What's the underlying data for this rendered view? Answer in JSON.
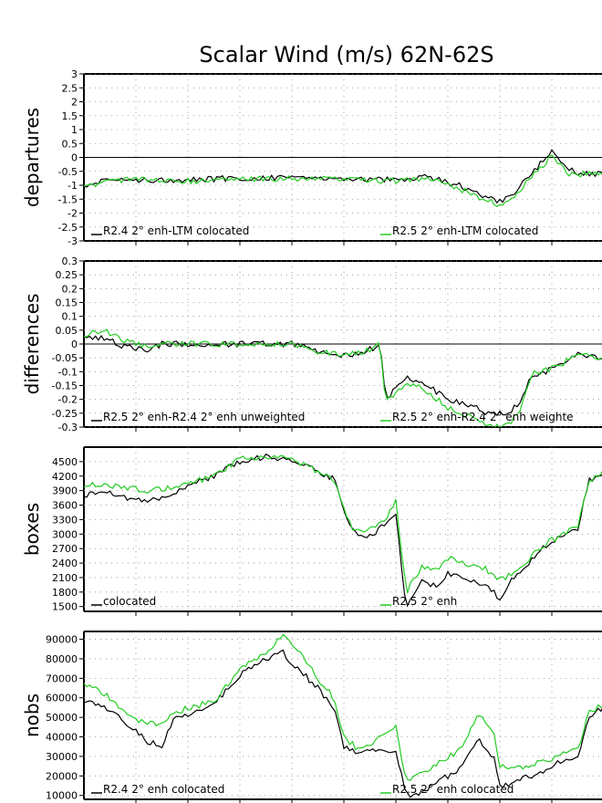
{
  "chart_data": {
    "title": "Scalar Wind (m/s) 62N-62S",
    "colors": {
      "black": "#000000",
      "green": "#22cc22",
      "grid": "#8c8c8c",
      "zero_line": "#000000"
    },
    "panels": [
      {
        "type": "line",
        "ylabel": "departures",
        "ylim": [
          -3,
          3
        ],
        "yticks": [
          "3",
          "2.5",
          "2",
          "1.5",
          "1",
          "0.5",
          "0",
          "-0.5",
          "-1",
          "-1.5",
          "-2",
          "-2.5",
          "-3"
        ],
        "zero_line": true,
        "grid": true,
        "legend": {
          "placement": "bottom",
          "black_label": "R2.4 2° enh-LTM colocated",
          "green_label": "R2.5 2° enh-LTM colocated"
        },
        "series": [
          {
            "name": "R2.4 2° enh-LTM colocated",
            "color": "black",
            "keypoints": [
              [
                0,
                -1.0
              ],
              [
                0.05,
                -0.8
              ],
              [
                0.1,
                -0.8
              ],
              [
                0.2,
                -0.8
              ],
              [
                0.3,
                -0.75
              ],
              [
                0.4,
                -0.7
              ],
              [
                0.5,
                -0.75
              ],
              [
                0.6,
                -0.8
              ],
              [
                0.66,
                -0.7
              ],
              [
                0.72,
                -1.0
              ],
              [
                0.77,
                -1.4
              ],
              [
                0.8,
                -1.6
              ],
              [
                0.83,
                -1.2
              ],
              [
                0.86,
                -0.6
              ],
              [
                0.9,
                0.25
              ],
              [
                0.93,
                -0.4
              ],
              [
                0.96,
                -0.6
              ],
              [
                1.0,
                -0.6
              ]
            ]
          },
          {
            "name": "R2.5 2° enh-LTM colocated",
            "color": "green",
            "keypoints": [
              [
                0,
                -1.1
              ],
              [
                0.05,
                -0.8
              ],
              [
                0.1,
                -0.8
              ],
              [
                0.2,
                -0.85
              ],
              [
                0.3,
                -0.8
              ],
              [
                0.4,
                -0.75
              ],
              [
                0.5,
                -0.8
              ],
              [
                0.6,
                -0.85
              ],
              [
                0.66,
                -0.75
              ],
              [
                0.72,
                -1.1
              ],
              [
                0.77,
                -1.5
              ],
              [
                0.8,
                -1.7
              ],
              [
                0.83,
                -1.4
              ],
              [
                0.86,
                -0.7
              ],
              [
                0.9,
                0.05
              ],
              [
                0.93,
                -0.6
              ],
              [
                0.96,
                -0.6
              ],
              [
                1.0,
                -0.6
              ]
            ]
          }
        ]
      },
      {
        "type": "line",
        "ylabel": "differences",
        "ylim": [
          -0.3,
          0.3
        ],
        "yticks": [
          "0.3",
          "0.25",
          "0.2",
          "0.15",
          "0.1",
          "0.05",
          "0",
          "-0.05",
          "-0.1",
          "-0.15",
          "-0.2",
          "-0.25",
          "-0.3"
        ],
        "zero_line": true,
        "grid": true,
        "legend": {
          "placement": "bottom",
          "black_label": "R2.5 2° enh-R2.4 2° enh unweighted",
          "green_label": "R2.5 2° enh-R2.4 2° enh weighte"
        },
        "series": [
          {
            "name": "R2.5 2° enh-R2.4 2° enh unweighted",
            "color": "black",
            "keypoints": [
              [
                0,
                0.02
              ],
              [
                0.04,
                0.02
              ],
              [
                0.08,
                -0.01
              ],
              [
                0.12,
                -0.02
              ],
              [
                0.15,
                0.0
              ],
              [
                0.2,
                0.0
              ],
              [
                0.3,
                0.0
              ],
              [
                0.4,
                0.0
              ],
              [
                0.46,
                -0.03
              ],
              [
                0.5,
                -0.04
              ],
              [
                0.54,
                -0.03
              ],
              [
                0.57,
                0.0
              ],
              [
                0.58,
                -0.2
              ],
              [
                0.62,
                -0.12
              ],
              [
                0.66,
                -0.15
              ],
              [
                0.7,
                -0.2
              ],
              [
                0.74,
                -0.22
              ],
              [
                0.78,
                -0.25
              ],
              [
                0.82,
                -0.25
              ],
              [
                0.84,
                -0.2
              ],
              [
                0.86,
                -0.12
              ],
              [
                0.9,
                -0.09
              ],
              [
                0.95,
                -0.04
              ],
              [
                1.0,
                -0.05
              ]
            ]
          },
          {
            "name": "R2.5 2° enh-R2.4 2° enh weighte",
            "color": "green",
            "keypoints": [
              [
                0,
                0.03
              ],
              [
                0.04,
                0.05
              ],
              [
                0.08,
                0.01
              ],
              [
                0.12,
                -0.01
              ],
              [
                0.15,
                0.0
              ],
              [
                0.2,
                0.0
              ],
              [
                0.3,
                0.0
              ],
              [
                0.4,
                0.0
              ],
              [
                0.46,
                -0.03
              ],
              [
                0.5,
                -0.04
              ],
              [
                0.54,
                -0.03
              ],
              [
                0.57,
                0.0
              ],
              [
                0.58,
                -0.21
              ],
              [
                0.62,
                -0.14
              ],
              [
                0.66,
                -0.17
              ],
              [
                0.7,
                -0.23
              ],
              [
                0.74,
                -0.26
              ],
              [
                0.78,
                -0.3
              ],
              [
                0.82,
                -0.29
              ],
              [
                0.84,
                -0.23
              ],
              [
                0.86,
                -0.11
              ],
              [
                0.9,
                -0.09
              ],
              [
                0.95,
                -0.04
              ],
              [
                1.0,
                -0.05
              ]
            ]
          }
        ]
      },
      {
        "type": "line",
        "ylabel": "boxes",
        "ylim": [
          1400,
          4800
        ],
        "yticks": [
          "4500",
          "4200",
          "3900",
          "3600",
          "3300",
          "3000",
          "2700",
          "2400",
          "2100",
          "1800",
          "1500"
        ],
        "zero_line": false,
        "grid": true,
        "legend": {
          "placement": "bottom",
          "black_label": "colocated",
          "green_label": "R2.5 2° enh"
        },
        "series": [
          {
            "name": "colocated",
            "color": "black",
            "keypoints": [
              [
                0,
                3800
              ],
              [
                0.04,
                3900
              ],
              [
                0.08,
                3750
              ],
              [
                0.12,
                3650
              ],
              [
                0.16,
                3800
              ],
              [
                0.2,
                4000
              ],
              [
                0.25,
                4200
              ],
              [
                0.3,
                4500
              ],
              [
                0.35,
                4600
              ],
              [
                0.4,
                4550
              ],
              [
                0.45,
                4300
              ],
              [
                0.48,
                4150
              ],
              [
                0.5,
                3500
              ],
              [
                0.52,
                3000
              ],
              [
                0.55,
                2950
              ],
              [
                0.58,
                3200
              ],
              [
                0.6,
                3400
              ],
              [
                0.62,
                1450
              ],
              [
                0.65,
                2000
              ],
              [
                0.68,
                1900
              ],
              [
                0.7,
                2200
              ],
              [
                0.74,
                2000
              ],
              [
                0.77,
                2000
              ],
              [
                0.8,
                1650
              ],
              [
                0.82,
                2000
              ],
              [
                0.85,
                2300
              ],
              [
                0.88,
                2700
              ],
              [
                0.92,
                3000
              ],
              [
                0.95,
                3100
              ],
              [
                0.97,
                4100
              ],
              [
                1.0,
                4300
              ]
            ]
          },
          {
            "name": "R2.5 2° enh",
            "color": "green",
            "keypoints": [
              [
                0,
                4000
              ],
              [
                0.04,
                4050
              ],
              [
                0.08,
                3950
              ],
              [
                0.12,
                3900
              ],
              [
                0.16,
                3950
              ],
              [
                0.2,
                4050
              ],
              [
                0.25,
                4200
              ],
              [
                0.3,
                4550
              ],
              [
                0.35,
                4600
              ],
              [
                0.4,
                4550
              ],
              [
                0.45,
                4300
              ],
              [
                0.48,
                4150
              ],
              [
                0.5,
                3500
              ],
              [
                0.52,
                3050
              ],
              [
                0.55,
                3100
              ],
              [
                0.58,
                3300
              ],
              [
                0.6,
                3700
              ],
              [
                0.62,
                1800
              ],
              [
                0.65,
                2300
              ],
              [
                0.68,
                2250
              ],
              [
                0.7,
                2500
              ],
              [
                0.74,
                2350
              ],
              [
                0.77,
                2300
              ],
              [
                0.8,
                2050
              ],
              [
                0.82,
                2150
              ],
              [
                0.85,
                2400
              ],
              [
                0.88,
                2750
              ],
              [
                0.92,
                3000
              ],
              [
                0.95,
                3150
              ],
              [
                0.97,
                4100
              ],
              [
                1.0,
                4300
              ]
            ]
          }
        ]
      },
      {
        "type": "line",
        "ylabel": "nobs",
        "ylim": [
          8000,
          94000
        ],
        "yticks": [
          "90000",
          "80000",
          "70000",
          "60000",
          "50000",
          "40000",
          "30000",
          "20000",
          "10000"
        ],
        "zero_line": false,
        "grid": true,
        "legend": {
          "placement": "bottom",
          "black_label": "R2.4 2° enh colocated",
          "green_label": "R2.5 2° enh colocated"
        },
        "series": [
          {
            "name": "R2.4 2° enh colocated",
            "color": "black",
            "keypoints": [
              [
                0,
                58000
              ],
              [
                0.04,
                55000
              ],
              [
                0.08,
                47000
              ],
              [
                0.12,
                38000
              ],
              [
                0.15,
                35000
              ],
              [
                0.17,
                48000
              ],
              [
                0.2,
                52000
              ],
              [
                0.25,
                57000
              ],
              [
                0.3,
                72000
              ],
              [
                0.35,
                80000
              ],
              [
                0.38,
                84000
              ],
              [
                0.4,
                78000
              ],
              [
                0.45,
                65000
              ],
              [
                0.48,
                55000
              ],
              [
                0.5,
                35000
              ],
              [
                0.53,
                31000
              ],
              [
                0.56,
                33000
              ],
              [
                0.6,
                33000
              ],
              [
                0.62,
                10000
              ],
              [
                0.65,
                12000
              ],
              [
                0.7,
                20000
              ],
              [
                0.72,
                22000
              ],
              [
                0.76,
                38000
              ],
              [
                0.79,
                28000
              ],
              [
                0.8,
                14000
              ],
              [
                0.84,
                18000
              ],
              [
                0.88,
                22000
              ],
              [
                0.92,
                28000
              ],
              [
                0.95,
                30000
              ],
              [
                0.97,
                50000
              ],
              [
                1.0,
                55000
              ]
            ]
          },
          {
            "name": "R2.5 2° enh colocated",
            "color": "green",
            "keypoints": [
              [
                0,
                68000
              ],
              [
                0.04,
                62000
              ],
              [
                0.08,
                52000
              ],
              [
                0.12,
                47000
              ],
              [
                0.15,
                46000
              ],
              [
                0.17,
                52000
              ],
              [
                0.2,
                55000
              ],
              [
                0.25,
                58000
              ],
              [
                0.3,
                75000
              ],
              [
                0.35,
                83000
              ],
              [
                0.38,
                92000
              ],
              [
                0.4,
                88000
              ],
              [
                0.45,
                70000
              ],
              [
                0.48,
                60000
              ],
              [
                0.5,
                40000
              ],
              [
                0.53,
                33000
              ],
              [
                0.56,
                38000
              ],
              [
                0.6,
                45000
              ],
              [
                0.62,
                18000
              ],
              [
                0.65,
                21000
              ],
              [
                0.7,
                30000
              ],
              [
                0.72,
                32000
              ],
              [
                0.76,
                52000
              ],
              [
                0.79,
                40000
              ],
              [
                0.8,
                25000
              ],
              [
                0.84,
                24000
              ],
              [
                0.88,
                27000
              ],
              [
                0.92,
                31000
              ],
              [
                0.95,
                33000
              ],
              [
                0.97,
                52000
              ],
              [
                1.0,
                57000
              ]
            ]
          }
        ]
      }
    ]
  }
}
